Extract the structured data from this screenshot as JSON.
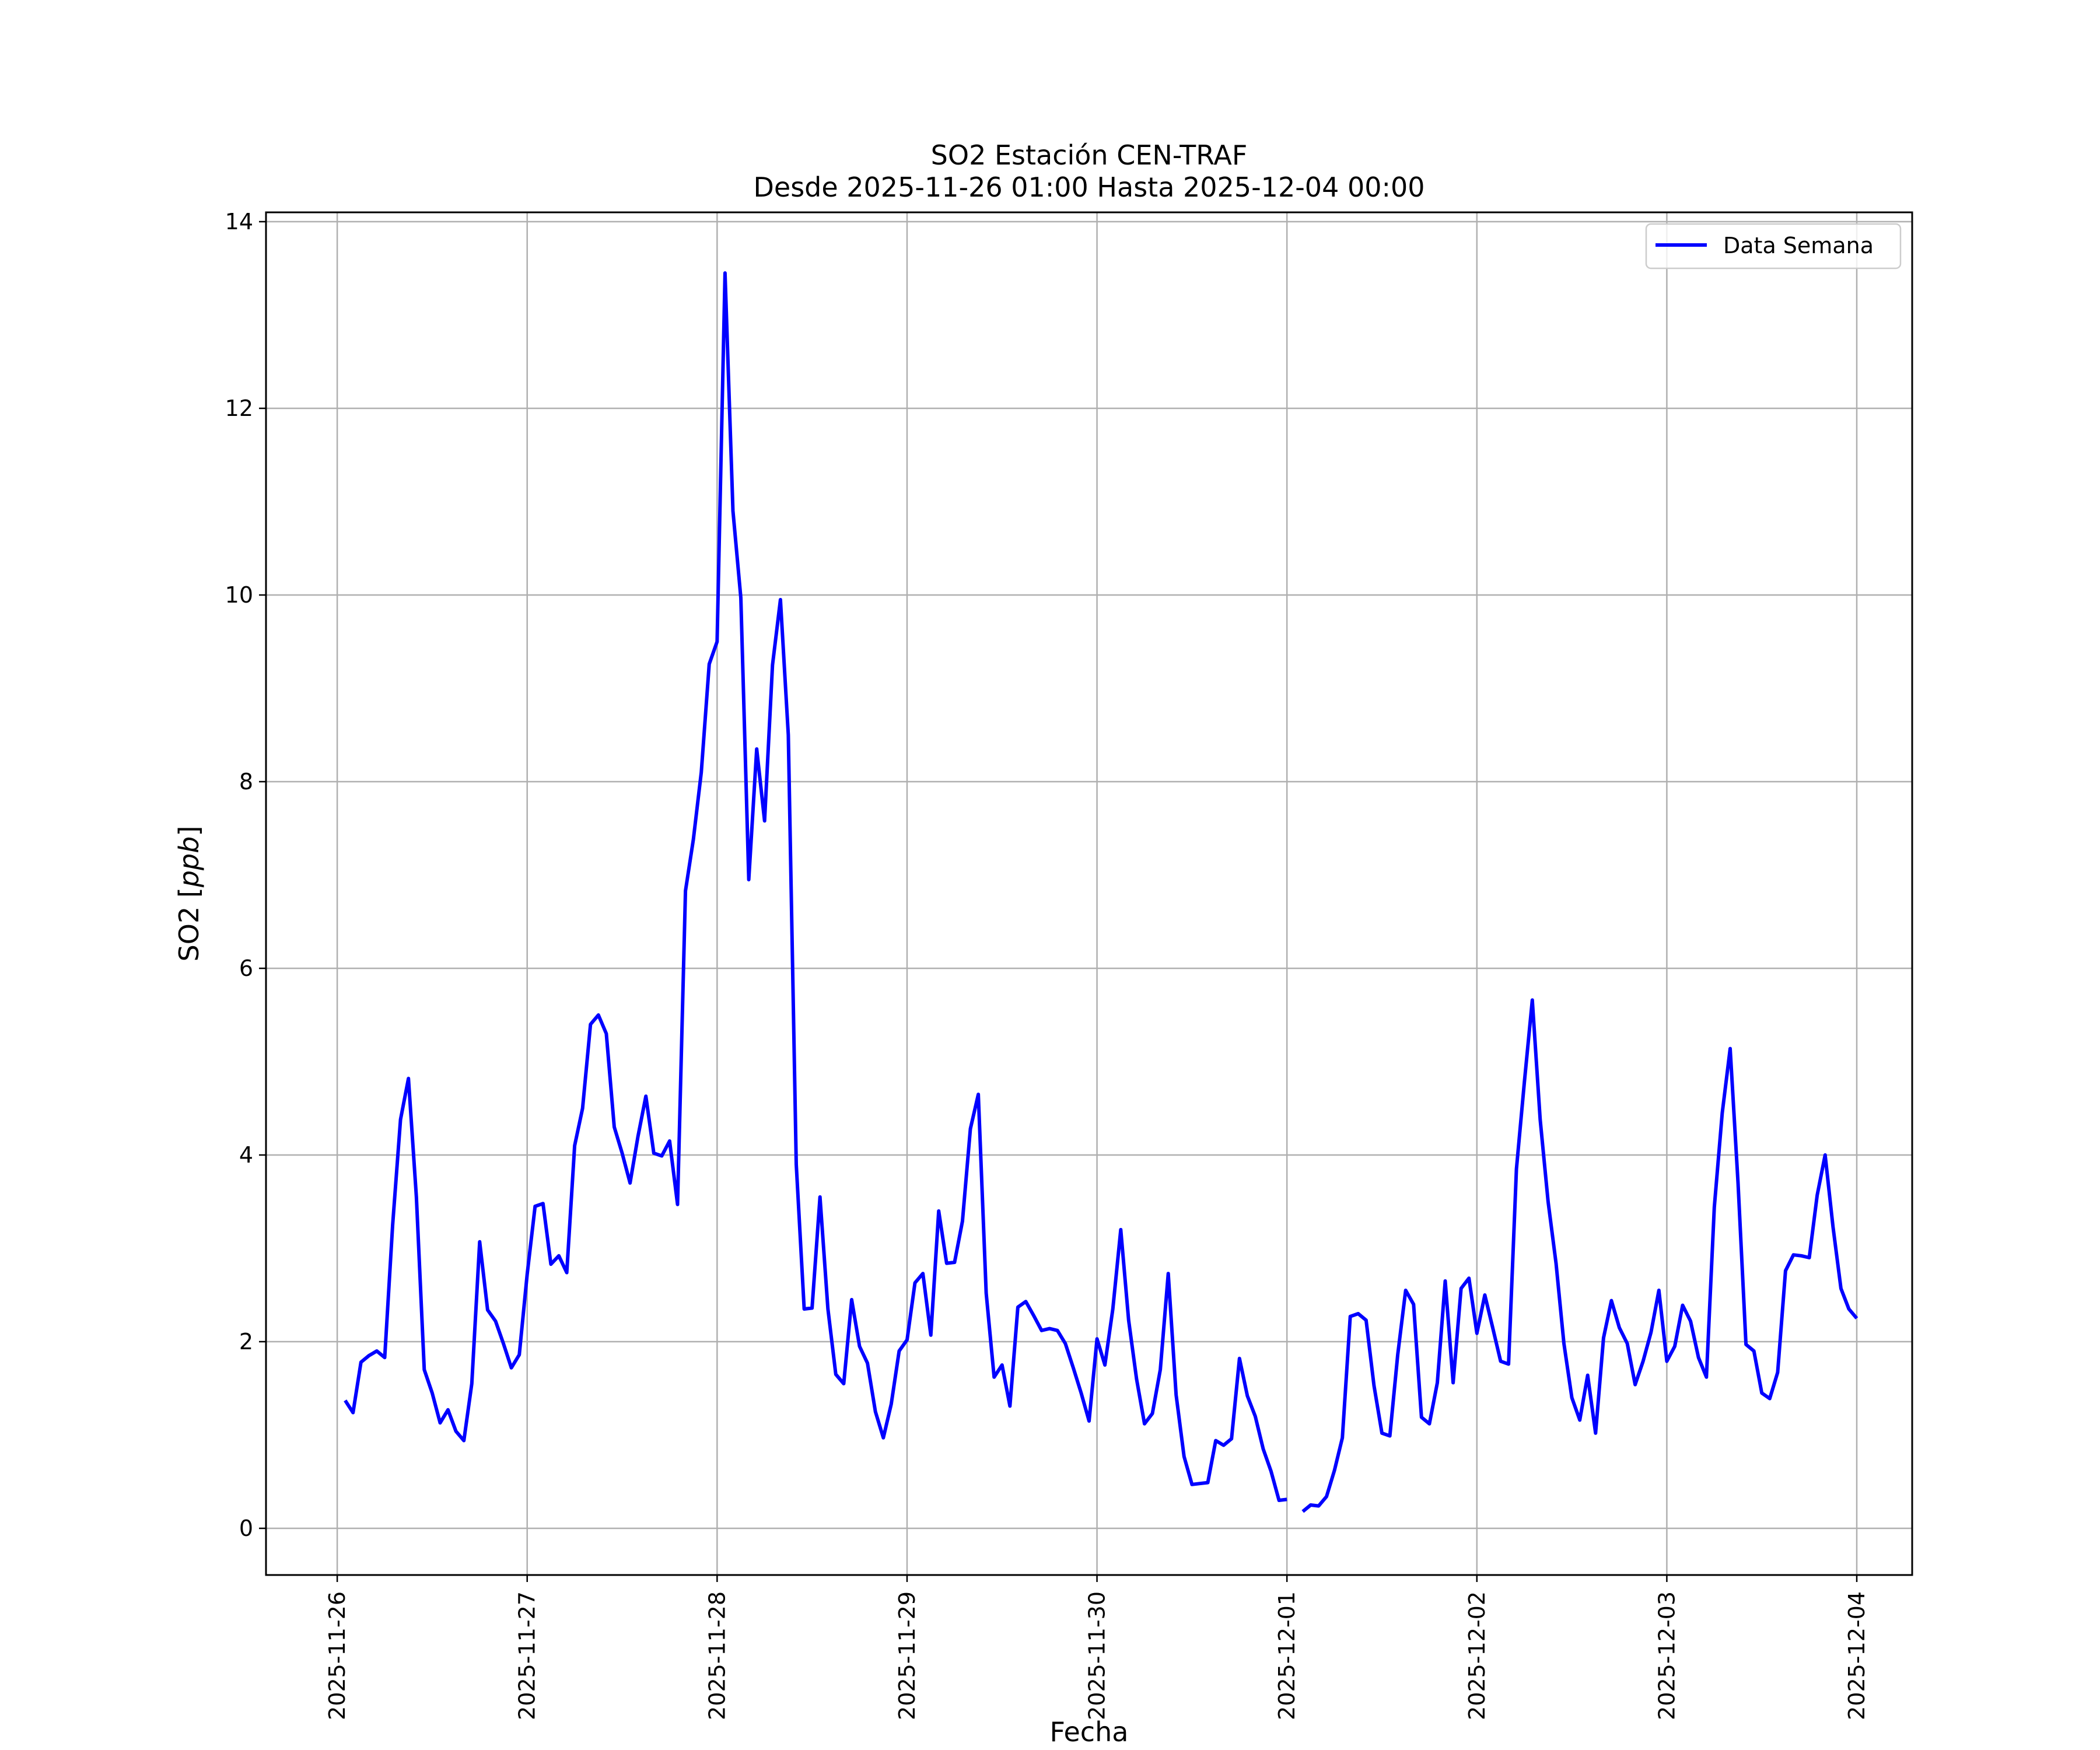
{
  "chart_data": {
    "type": "line",
    "title": "SO2 Estación CEN-TRAF",
    "subtitle": "Desde 2025-11-26 01:00 Hasta 2025-12-04 00:00",
    "xlabel": "Fecha",
    "ylabel_prefix": "SO2 [",
    "ylabel_unit": "ppb",
    "ylabel_suffix": "]",
    "ylim": [
      -0.5,
      14.1
    ],
    "xlim": [
      "2025-11-25 15:00",
      "2025-12-04 07:00"
    ],
    "yticks": [
      0,
      2,
      4,
      6,
      8,
      10,
      12,
      14
    ],
    "xticks": [
      "2025-11-26",
      "2025-11-27",
      "2025-11-28",
      "2025-11-29",
      "2025-11-30",
      "2025-12-01",
      "2025-12-02",
      "2025-12-03",
      "2025-12-04"
    ],
    "grid": true,
    "legend_position": "upper right",
    "series": [
      {
        "name": "Data Semana",
        "color": "#0000ff",
        "x": [
          "2025-11-26 01:00",
          "2025-11-26 02:00",
          "2025-11-26 03:00",
          "2025-11-26 04:00",
          "2025-11-26 05:00",
          "2025-11-26 06:00",
          "2025-11-26 07:00",
          "2025-11-26 08:00",
          "2025-11-26 09:00",
          "2025-11-26 10:00",
          "2025-11-26 11:00",
          "2025-11-26 12:00",
          "2025-11-26 13:00",
          "2025-11-26 14:00",
          "2025-11-26 15:00",
          "2025-11-26 16:00",
          "2025-11-26 17:00",
          "2025-11-26 18:00",
          "2025-11-26 19:00",
          "2025-11-26 20:00",
          "2025-11-26 21:00",
          "2025-11-26 22:00",
          "2025-11-26 23:00",
          "2025-11-27 00:00",
          "2025-11-27 01:00",
          "2025-11-27 02:00",
          "2025-11-27 03:00",
          "2025-11-27 04:00",
          "2025-11-27 05:00",
          "2025-11-27 06:00",
          "2025-11-27 07:00",
          "2025-11-27 08:00",
          "2025-11-27 09:00",
          "2025-11-27 10:00",
          "2025-11-27 11:00",
          "2025-11-27 12:00",
          "2025-11-27 13:00",
          "2025-11-27 14:00",
          "2025-11-27 15:00",
          "2025-11-27 16:00",
          "2025-11-27 17:00",
          "2025-11-27 18:00",
          "2025-11-27 19:00",
          "2025-11-27 20:00",
          "2025-11-27 21:00",
          "2025-11-27 22:00",
          "2025-11-27 23:00",
          "2025-11-28 00:00",
          "2025-11-28 01:00",
          "2025-11-28 02:00",
          "2025-11-28 03:00",
          "2025-11-28 04:00",
          "2025-11-28 05:00",
          "2025-11-28 06:00",
          "2025-11-28 07:00",
          "2025-11-28 08:00",
          "2025-11-28 09:00",
          "2025-11-28 10:00",
          "2025-11-28 11:00",
          "2025-11-28 12:00",
          "2025-11-28 13:00",
          "2025-11-28 14:00",
          "2025-11-28 15:00",
          "2025-11-28 16:00",
          "2025-11-28 17:00",
          "2025-11-28 18:00",
          "2025-11-28 19:00",
          "2025-11-28 20:00",
          "2025-11-28 21:00",
          "2025-11-28 22:00",
          "2025-11-28 23:00",
          "2025-11-29 00:00",
          "2025-11-29 01:00",
          "2025-11-29 02:00",
          "2025-11-29 03:00",
          "2025-11-29 04:00",
          "2025-11-29 05:00",
          "2025-11-29 06:00",
          "2025-11-29 07:00",
          "2025-11-29 08:00",
          "2025-11-29 09:00",
          "2025-11-29 10:00",
          "2025-11-29 11:00",
          "2025-11-29 12:00",
          "2025-11-29 13:00",
          "2025-11-29 14:00",
          "2025-11-29 15:00",
          "2025-11-29 16:00",
          "2025-11-29 17:00",
          "2025-11-29 18:00",
          "2025-11-29 19:00",
          "2025-11-29 20:00",
          "2025-11-29 21:00",
          "2025-11-29 22:00",
          "2025-11-29 23:00",
          "2025-11-30 00:00",
          "2025-11-30 01:00",
          "2025-11-30 02:00",
          "2025-11-30 03:00",
          "2025-11-30 04:00",
          "2025-11-30 05:00",
          "2025-11-30 06:00",
          "2025-11-30 07:00",
          "2025-11-30 08:00",
          "2025-11-30 09:00",
          "2025-11-30 10:00",
          "2025-11-30 11:00",
          "2025-11-30 12:00",
          "2025-11-30 13:00",
          "2025-11-30 14:00",
          "2025-11-30 15:00",
          "2025-11-30 16:00",
          "2025-11-30 17:00",
          "2025-11-30 18:00",
          "2025-11-30 19:00",
          "2025-11-30 20:00",
          "2025-11-30 21:00",
          "2025-11-30 22:00",
          "2025-11-30 23:00",
          "2025-12-01 00:00",
          "2025-12-01 01:00",
          "2025-12-01 02:00",
          "2025-12-01 03:00",
          "2025-12-01 04:00",
          "2025-12-01 05:00",
          "2025-12-01 06:00",
          "2025-12-01 07:00",
          "2025-12-01 08:00",
          "2025-12-01 09:00",
          "2025-12-01 10:00",
          "2025-12-01 11:00",
          "2025-12-01 12:00",
          "2025-12-01 13:00",
          "2025-12-01 14:00",
          "2025-12-01 15:00",
          "2025-12-01 16:00",
          "2025-12-01 17:00",
          "2025-12-01 18:00",
          "2025-12-01 19:00",
          "2025-12-01 20:00",
          "2025-12-01 21:00",
          "2025-12-01 22:00",
          "2025-12-01 23:00",
          "2025-12-02 00:00",
          "2025-12-02 01:00",
          "2025-12-02 02:00",
          "2025-12-02 03:00",
          "2025-12-02 04:00",
          "2025-12-02 05:00",
          "2025-12-02 06:00",
          "2025-12-02 07:00",
          "2025-12-02 08:00",
          "2025-12-02 09:00",
          "2025-12-02 10:00",
          "2025-12-02 11:00",
          "2025-12-02 12:00",
          "2025-12-02 13:00",
          "2025-12-02 14:00",
          "2025-12-02 15:00",
          "2025-12-02 16:00",
          "2025-12-02 17:00",
          "2025-12-02 18:00",
          "2025-12-02 19:00",
          "2025-12-02 20:00",
          "2025-12-02 21:00",
          "2025-12-02 22:00",
          "2025-12-02 23:00",
          "2025-12-03 00:00",
          "2025-12-03 01:00",
          "2025-12-03 02:00",
          "2025-12-03 03:00",
          "2025-12-03 04:00",
          "2025-12-03 05:00",
          "2025-12-03 06:00",
          "2025-12-03 07:00",
          "2025-12-03 08:00",
          "2025-12-03 09:00",
          "2025-12-03 10:00",
          "2025-12-03 11:00",
          "2025-12-03 12:00",
          "2025-12-03 13:00",
          "2025-12-03 14:00",
          "2025-12-03 15:00",
          "2025-12-03 16:00",
          "2025-12-03 17:00",
          "2025-12-03 18:00",
          "2025-12-03 19:00",
          "2025-12-03 20:00",
          "2025-12-03 21:00",
          "2025-12-03 22:00",
          "2025-12-03 23:00",
          "2025-12-04 00:00"
        ],
        "y": [
          1.37,
          1.24,
          1.78,
          1.85,
          1.9,
          1.83,
          3.25,
          4.38,
          4.82,
          3.55,
          1.7,
          1.45,
          1.13,
          1.27,
          1.04,
          0.94,
          1.55,
          3.07,
          2.34,
          2.22,
          1.98,
          1.72,
          1.86,
          2.72,
          3.45,
          3.48,
          2.83,
          2.92,
          2.74,
          4.1,
          4.5,
          5.4,
          5.5,
          5.3,
          4.3,
          4.02,
          3.7,
          4.2,
          4.63,
          4.02,
          3.99,
          4.15,
          3.47,
          6.83,
          7.38,
          8.1,
          9.26,
          9.5,
          13.45,
          10.9,
          9.97,
          6.95,
          8.35,
          7.58,
          9.25,
          9.95,
          8.5,
          3.9,
          2.35,
          2.36,
          3.55,
          2.35,
          1.65,
          1.55,
          2.45,
          1.95,
          1.77,
          1.25,
          0.97,
          1.33,
          1.9,
          2.02,
          2.63,
          2.73,
          2.07,
          3.4,
          2.84,
          2.85,
          3.29,
          4.28,
          4.65,
          2.52,
          1.62,
          1.75,
          1.31,
          2.37,
          2.43,
          2.28,
          2.12,
          2.14,
          2.12,
          1.98,
          1.72,
          1.45,
          1.15,
          2.03,
          1.75,
          2.35,
          3.2,
          2.23,
          1.6,
          1.12,
          1.23,
          1.7,
          2.73,
          1.43,
          0.77,
          0.47,
          0.48,
          0.49,
          0.94,
          0.89,
          0.96,
          1.82,
          1.42,
          1.2,
          0.85,
          0.61,
          0.3,
          0.31,
          null,
          0.18,
          0.25,
          0.24,
          0.34,
          0.62,
          0.97,
          2.27,
          2.3,
          2.23,
          1.53,
          1.02,
          0.99,
          1.86,
          2.55,
          2.4,
          1.19,
          1.12,
          1.56,
          2.65,
          1.56,
          2.57,
          2.68,
          2.09,
          2.5,
          2.15,
          1.79,
          1.76,
          3.85,
          4.78,
          5.66,
          4.38,
          3.5,
          2.84,
          1.98,
          1.4,
          1.16,
          1.64,
          1.02,
          2.04,
          2.44,
          2.15,
          1.98,
          1.54,
          1.79,
          2.1,
          2.55,
          1.79,
          1.95,
          2.39,
          2.22,
          1.83,
          1.62,
          3.44,
          4.45,
          5.14,
          3.7,
          1.97,
          1.9,
          1.45,
          1.39,
          1.67,
          2.76,
          2.93,
          2.92,
          2.9,
          3.57,
          4.0,
          3.23,
          2.57,
          2.35,
          2.25
        ]
      }
    ]
  }
}
